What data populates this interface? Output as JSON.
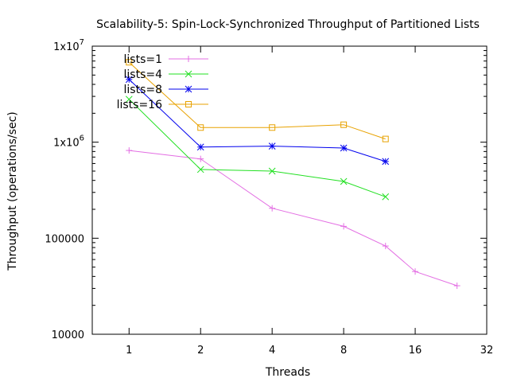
{
  "chart_data": {
    "type": "line",
    "title": "Scalability-5: Spin-Lock-Synchronized Throughput of Partitioned Lists",
    "xlabel": "Threads",
    "ylabel": "Throughput (operations/sec)",
    "x_scale": "log2",
    "y_scale": "log10",
    "xlim": [
      0.7,
      32
    ],
    "ylim": [
      10000,
      10000000
    ],
    "grid": false,
    "legend_position": "top-left",
    "x_ticks": [
      {
        "value": 1,
        "label": "1"
      },
      {
        "value": 2,
        "label": "2"
      },
      {
        "value": 4,
        "label": "4"
      },
      {
        "value": 8,
        "label": "8"
      },
      {
        "value": 16,
        "label": "16"
      },
      {
        "value": 32,
        "label": "32"
      }
    ],
    "y_ticks": [
      {
        "value": 10000,
        "label": "10000",
        "sup": ""
      },
      {
        "value": 100000,
        "label": "100000",
        "sup": ""
      },
      {
        "value": 1000000,
        "label": "1x10",
        "sup": "6"
      },
      {
        "value": 10000000,
        "label": "1x10",
        "sup": "7"
      }
    ],
    "series": [
      {
        "name": "lists=1",
        "color": "#e36fe3",
        "marker": "plus",
        "x": [
          1,
          2,
          4,
          8,
          12,
          16,
          24
        ],
        "y": [
          820000,
          670000,
          205000,
          133000,
          83000,
          45000,
          32000
        ]
      },
      {
        "name": "lists=4",
        "color": "#22e022",
        "marker": "cross",
        "x": [
          1,
          2,
          4,
          8,
          12
        ],
        "y": [
          2800000,
          520000,
          500000,
          390000,
          270000
        ]
      },
      {
        "name": "lists=8",
        "color": "#0000ee",
        "marker": "star",
        "x": [
          1,
          2,
          4,
          8,
          12
        ],
        "y": [
          4500000,
          890000,
          910000,
          870000,
          630000
        ]
      },
      {
        "name": "lists=16",
        "color": "#e8a200",
        "marker": "square",
        "x": [
          1,
          2,
          4,
          8,
          12
        ],
        "y": [
          6800000,
          1420000,
          1420000,
          1520000,
          1080000
        ]
      }
    ]
  }
}
